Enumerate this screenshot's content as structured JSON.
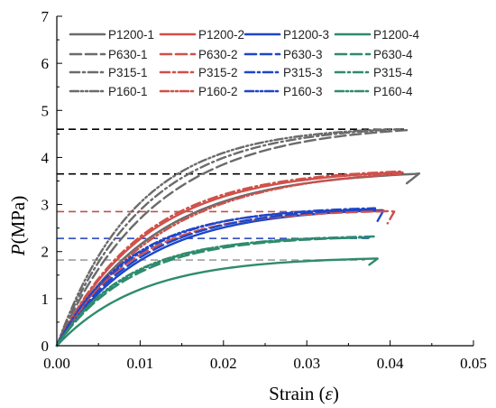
{
  "chart_data": {
    "type": "line",
    "xlabel_main": "Strain (",
    "xlabel_symbol": "ε",
    "xlabel_end": ")",
    "ylabel_symbol": "P",
    "ylabel_unit": "(MPa)",
    "xlim": [
      0,
      0.05
    ],
    "ylim": [
      0,
      7
    ],
    "xticks": [
      "0.00",
      "0.01",
      "0.02",
      "0.03",
      "0.04",
      "0.05"
    ],
    "yticks": [
      "0",
      "1",
      "2",
      "3",
      "4",
      "5",
      "6",
      "7"
    ],
    "legend_placement": "top",
    "grid": false,
    "reference_lines": [
      {
        "y": 4.6,
        "x_end": 0.042,
        "color": "#000000"
      },
      {
        "y": 3.65,
        "x_end": 0.042,
        "color": "#000000"
      },
      {
        "y": 2.85,
        "x_end": 0.039,
        "color": "#c0504d"
      },
      {
        "y": 2.28,
        "x_end": 0.038,
        "color": "#1f3fbf"
      },
      {
        "y": 1.82,
        "x_end": 0.037,
        "color": "#9e9e9e"
      }
    ],
    "series": [
      {
        "name": "P1200-1",
        "color": "#6b6b6b",
        "dash": "solid",
        "peak": 3.65,
        "end": 0.043,
        "k": 85,
        "tail": [
          0.0435,
          3.66,
          0.042,
          3.45
        ]
      },
      {
        "name": "P1200-2",
        "color": "#d0504a",
        "dash": "solid",
        "peak": 3.68,
        "end": 0.041,
        "k": 92,
        "tail": [
          0.0415,
          3.68
        ]
      },
      {
        "name": "P1200-3",
        "color": "#1f46c8",
        "dash": "solid",
        "peak": 2.88,
        "end": 0.039,
        "k": 95,
        "tail": [
          0.0392,
          2.87,
          0.0385,
          2.65
        ]
      },
      {
        "name": "P1200-4",
        "color": "#2e8b6e",
        "dash": "solid",
        "peak": 1.85,
        "end": 0.038,
        "k": 100,
        "tail": [
          0.0385,
          1.85,
          0.0375,
          1.72
        ]
      },
      {
        "name": "P630-1",
        "color": "#6b6b6b",
        "dash": "long",
        "peak": 4.58,
        "end": 0.042,
        "k": 85,
        "tail": [
          0.042,
          4.57
        ]
      },
      {
        "name": "P630-2",
        "color": "#d0504a",
        "dash": "long",
        "peak": 2.86,
        "end": 0.04,
        "k": 110,
        "tail": [
          0.0405,
          2.85,
          0.0397,
          2.6
        ]
      },
      {
        "name": "P630-3",
        "color": "#1f46c8",
        "dash": "long",
        "peak": 2.9,
        "end": 0.038,
        "k": 100,
        "tail": [
          0.0385,
          2.9
        ]
      },
      {
        "name": "P630-4",
        "color": "#2e8b6e",
        "dash": "long",
        "peak": 2.3,
        "end": 0.037,
        "k": 110,
        "tail": [
          0.0375,
          2.3
        ]
      },
      {
        "name": "P315-1",
        "color": "#6b6b6b",
        "dash": "dashdot",
        "peak": 4.6,
        "end": 0.041,
        "k": 95,
        "tail": [
          0.0412,
          4.58
        ]
      },
      {
        "name": "P315-2",
        "color": "#d0504a",
        "dash": "dashdot",
        "peak": 3.7,
        "end": 0.041,
        "k": 95,
        "tail": [
          0.0412,
          3.7
        ]
      },
      {
        "name": "P315-3",
        "color": "#1f46c8",
        "dash": "dashdot",
        "peak": 2.92,
        "end": 0.038,
        "k": 110,
        "tail": [
          0.0382,
          2.92
        ]
      },
      {
        "name": "P315-4",
        "color": "#2e8b6e",
        "dash": "dashdot",
        "peak": 2.32,
        "end": 0.038,
        "k": 115,
        "tail": [
          0.0382,
          2.32
        ]
      },
      {
        "name": "P160-1",
        "color": "#6b6b6b",
        "dash": "dashdotdot",
        "peak": 4.6,
        "end": 0.04,
        "k": 105,
        "tail": [
          0.0402,
          4.6
        ]
      },
      {
        "name": "P160-2",
        "color": "#d0504a",
        "dash": "dashdotdot",
        "peak": 3.65,
        "end": 0.041,
        "k": 80,
        "tail": [
          0.0412,
          3.65
        ]
      },
      {
        "name": "P160-3",
        "color": "#1f46c8",
        "dash": "dashdotdot",
        "peak": 2.9,
        "end": 0.038,
        "k": 115,
        "tail": [
          0.0382,
          2.9
        ]
      },
      {
        "name": "P160-4",
        "color": "#2e8b6e",
        "dash": "dashdotdot",
        "peak": 2.3,
        "end": 0.037,
        "k": 120,
        "tail": [
          0.0372,
          2.3
        ]
      }
    ]
  }
}
